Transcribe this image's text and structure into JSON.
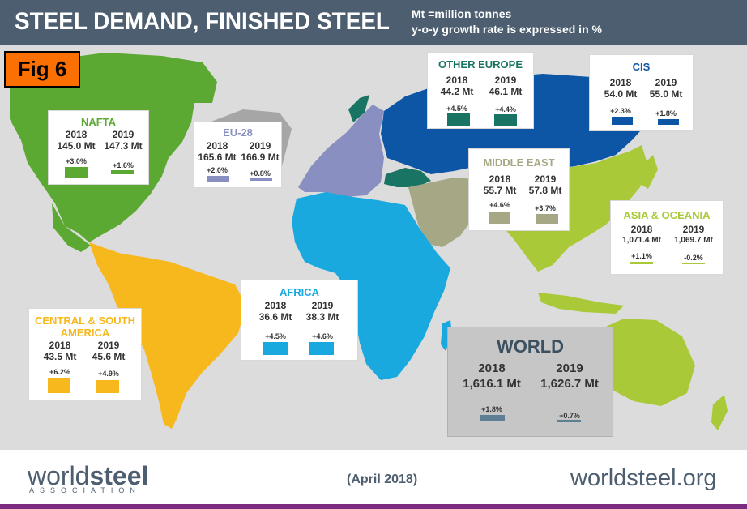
{
  "header": {
    "title": "STEEL DEMAND, FINISHED STEEL",
    "note_units": "Mt =million tonnes",
    "note_growth": "y-o-y growth rate is expressed in %"
  },
  "figure_label": "Fig 6",
  "colors": {
    "header": "#4d5e70",
    "nafta": "#5ba932",
    "eu28": "#8a8fc2",
    "other_europe": "#1a7464",
    "cis": "#0d56a6",
    "middle_east": "#a6a785",
    "asia_oceania": "#a9c938",
    "africa": "#1aa9df",
    "central_south_america": "#f6b81c",
    "world": "#5e7e94",
    "map_background": "#dcdcdc",
    "footer_bar": "#7b2c80"
  },
  "chart_data": {
    "type": "table",
    "title": "STEEL DEMAND, FINISHED STEEL",
    "unit": "Mt",
    "years": [
      "2018",
      "2019"
    ],
    "regions": [
      {
        "key": "nafta",
        "name": "NAFTA",
        "values": [
          "145.0 Mt",
          "147.3 Mt"
        ],
        "growth": [
          "+3.0%",
          "+1.6%"
        ],
        "color": "#5ba932"
      },
      {
        "key": "eu28",
        "name": "EU-28",
        "values": [
          "165.6 Mt",
          "166.9 Mt"
        ],
        "growth": [
          "+2.0%",
          "+0.8%"
        ],
        "color": "#8a8fc2"
      },
      {
        "key": "other_europe",
        "name": "OTHER EUROPE",
        "values": [
          "44.2 Mt",
          "46.1 Mt"
        ],
        "growth": [
          "+4.5%",
          "+4.4%"
        ],
        "color": "#1a7464"
      },
      {
        "key": "cis",
        "name": "CIS",
        "values": [
          "54.0 Mt",
          "55.0 Mt"
        ],
        "growth": [
          "+2.3%",
          "+1.8%"
        ],
        "color": "#0d56a6"
      },
      {
        "key": "middle_east",
        "name": "MIDDLE EAST",
        "values": [
          "55.7 Mt",
          "57.8 Mt"
        ],
        "growth": [
          "+4.6%",
          "+3.7%"
        ],
        "color": "#a6a785"
      },
      {
        "key": "asia_oceania",
        "name": "ASIA & OCEANIA",
        "values": [
          "1,071.4 Mt",
          "1,069.7 Mt"
        ],
        "growth": [
          "+1.1%",
          "-0.2%"
        ],
        "color": "#a9c938"
      },
      {
        "key": "africa",
        "name": "AFRICA",
        "values": [
          "36.6 Mt",
          "38.3 Mt"
        ],
        "growth": [
          "+4.5%",
          "+4.6%"
        ],
        "color": "#1aa9df"
      },
      {
        "key": "central_south_america",
        "name": "CENTRAL & SOUTH AMERICA",
        "name_line1": "CENTRAL & SOUTH",
        "name_line2": "AMERICA",
        "values": [
          "43.5 Mt",
          "45.6 Mt"
        ],
        "growth": [
          "+6.2%",
          "+4.9%"
        ],
        "color": "#f6b81c"
      },
      {
        "key": "world",
        "name": "WORLD",
        "values": [
          "1,616.1 Mt",
          "1,626.7 Mt"
        ],
        "growth": [
          "+1.8%",
          "+0.7%"
        ],
        "color": "#5e7e94"
      }
    ]
  },
  "footer": {
    "logo_text_light": "world",
    "logo_text_bold": "steel",
    "logo_subtitle": "ASSOCIATION",
    "date": "(April 2018)",
    "website": "worldsteel.org"
  }
}
